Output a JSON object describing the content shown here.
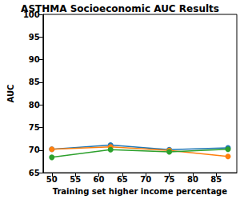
{
  "chart_data": {
    "type": "line",
    "title": "ASTHMA Socioeconomic AUC Results",
    "x_label": "Training set higher income percentage",
    "y_label": "AUC",
    "x": [
      50,
      62.5,
      75,
      87.5
    ],
    "series": [
      {
        "color": "#1f77b4",
        "values": [
          70.2,
          71.1,
          70.1,
          70.5
        ]
      },
      {
        "color": "#ff7f0e",
        "values": [
          70.2,
          70.7,
          69.9,
          68.6
        ]
      },
      {
        "color": "#2ca02c",
        "values": [
          68.4,
          70.1,
          69.6,
          70.2
        ]
      }
    ],
    "xlim": [
      48.125,
      89.375
    ],
    "xticks": [
      50,
      55,
      60,
      65,
      70,
      75,
      80,
      85
    ],
    "ylim": [
      65,
      100
    ],
    "yticks": [
      65,
      70,
      75,
      80,
      85,
      90,
      95,
      100
    ],
    "grid": false,
    "marker": "circle"
  }
}
